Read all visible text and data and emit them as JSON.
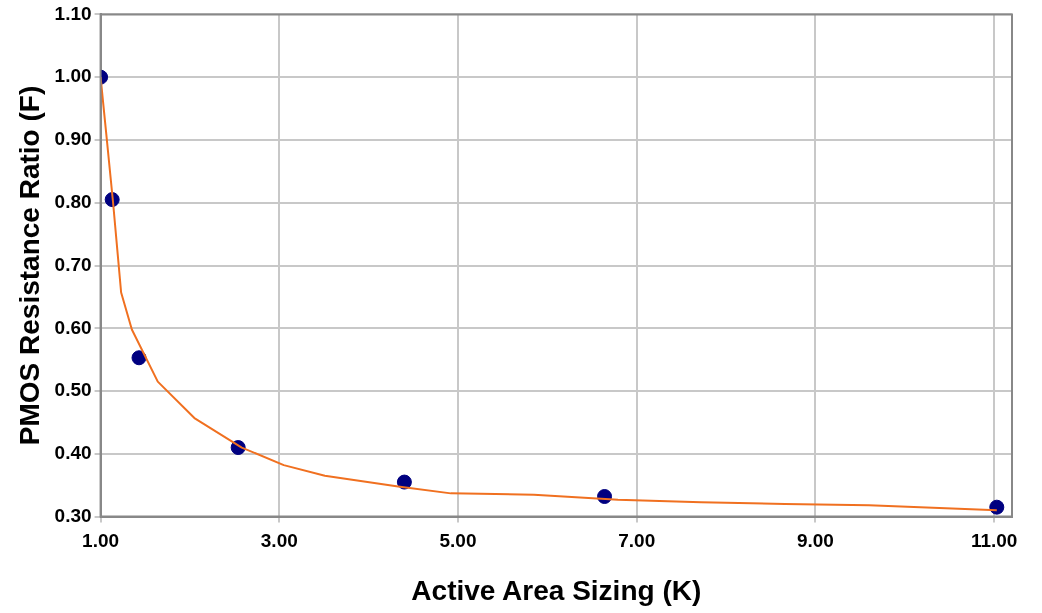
{
  "chart_data": {
    "type": "scatter",
    "xlabel": "Active Area Sizing (K)",
    "ylabel": "PMOS Resistance Ratio (F)",
    "xlim": [
      1,
      11.2
    ],
    "ylim": [
      0.3,
      1.1
    ],
    "xticks": [
      {
        "value": 1,
        "label": "1.00"
      },
      {
        "value": 3,
        "label": "3.00"
      },
      {
        "value": 5,
        "label": "5.00"
      },
      {
        "value": 7,
        "label": "7.00"
      },
      {
        "value": 9,
        "label": "9.00"
      },
      {
        "value": 11,
        "label": "11.00"
      }
    ],
    "yticks": [
      {
        "value": 0.3,
        "label": "0.30"
      },
      {
        "value": 0.4,
        "label": "0.40"
      },
      {
        "value": 0.5,
        "label": "0.50"
      },
      {
        "value": 0.6,
        "label": "0.60"
      },
      {
        "value": 0.7,
        "label": "0.70"
      },
      {
        "value": 0.8,
        "label": "0.80"
      },
      {
        "value": 0.9,
        "label": "0.90"
      },
      {
        "value": 1.0,
        "label": "1.00"
      },
      {
        "value": 1.1,
        "label": "1.10"
      }
    ],
    "grid": true,
    "legend": false,
    "series": [
      {
        "type": "line",
        "color": "#f07020",
        "marker": "none",
        "x": [
          1,
          1.06,
          1.14,
          1.23,
          1.35,
          1.64,
          2.05,
          2.58,
          3.05,
          3.51,
          4.33,
          4.92,
          5.85,
          6.79,
          7.72,
          8.66,
          9.6,
          10.53,
          11.03
        ],
        "values": [
          1,
          0.915,
          0.8,
          0.657,
          0.598,
          0.515,
          0.457,
          0.41,
          0.382,
          0.365,
          0.348,
          0.337,
          0.335,
          0.327,
          0.323,
          0.32,
          0.318,
          0.313,
          0.31
        ]
      },
      {
        "type": "scatter",
        "color": "#000080",
        "marker": "circle",
        "x": [
          1,
          1.13,
          1.43,
          2.54,
          4.4,
          6.64,
          11.03
        ],
        "values": [
          1,
          0.805,
          0.553,
          0.41,
          0.355,
          0.332,
          0.315
        ]
      }
    ]
  }
}
